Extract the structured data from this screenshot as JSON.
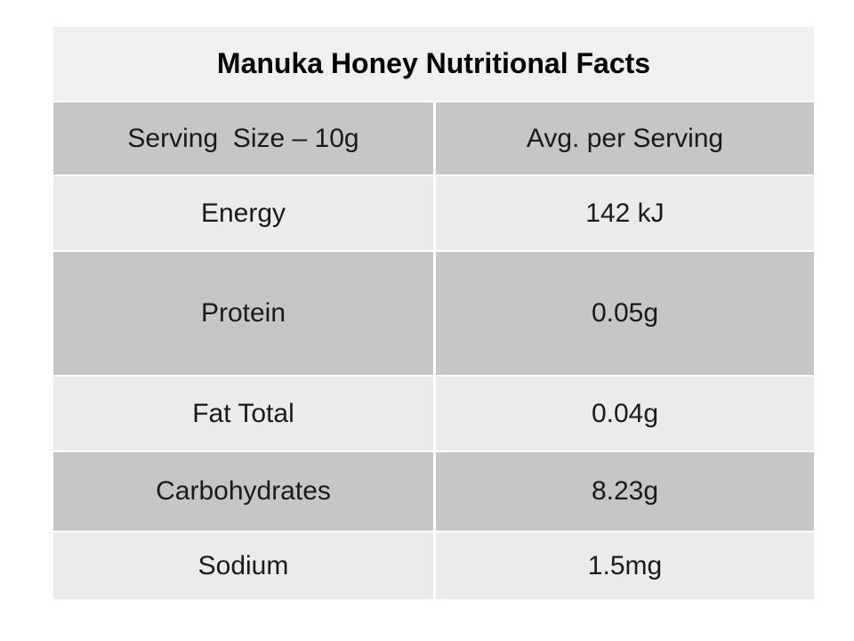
{
  "table": {
    "title": "Manuka Honey Nutritional Facts",
    "header": {
      "left": "Serving  Size – 10g",
      "right": "Avg. per Serving"
    },
    "rows": [
      {
        "label": "Energy",
        "value": "142 kJ"
      },
      {
        "label": "Protein",
        "value": "0.05g"
      },
      {
        "label": "Fat Total",
        "value": "0.04g"
      },
      {
        "label": "Carbohydrates",
        "value": "8.23g"
      },
      {
        "label": "Sodium",
        "value": "1.5mg"
      }
    ]
  },
  "colors": {
    "row_light": "#ebebeb",
    "row_dark": "#c6c6c6",
    "title_row": "#f0f0f0",
    "background": "#ffffff",
    "text": "#1a1a1a"
  },
  "chart_data": {
    "type": "table",
    "title": "Manuka Honey Nutritional Facts",
    "columns": [
      "Serving  Size – 10g",
      "Avg. per Serving"
    ],
    "rows": [
      [
        "Energy",
        "142 kJ"
      ],
      [
        "Protein",
        "0.05g"
      ],
      [
        "Fat Total",
        "0.04g"
      ],
      [
        "Carbohydrates",
        "8.23g"
      ],
      [
        "Sodium",
        "1.5mg"
      ]
    ]
  }
}
